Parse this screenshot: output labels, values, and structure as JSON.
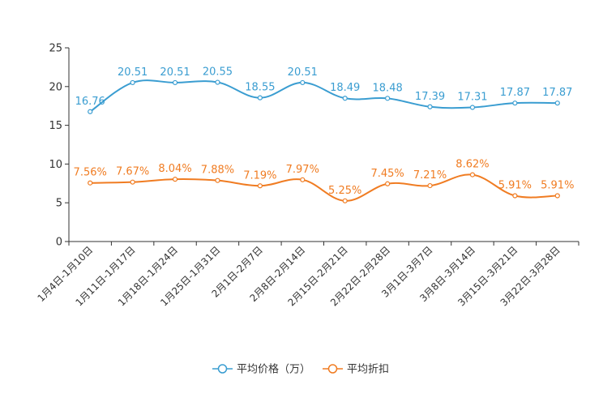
{
  "chart_data": {
    "type": "line",
    "title": "",
    "xlabel": "",
    "ylabel": "",
    "ylim": [
      0,
      25
    ],
    "yticks": [
      0,
      5,
      10,
      15,
      20,
      25
    ],
    "categories": [
      "1月4日-1月10日",
      "1月11日-1月17日",
      "1月18日-1月24日",
      "1月25日-1月31日",
      "2月1日-2月7日",
      "2月8日-2月14日",
      "2月15日-2月21日",
      "2月22日-2月28日",
      "3月1日-3月7日",
      "3月8日-3月14日",
      "3月15日-3月21日",
      "3月22日-3月28日"
    ],
    "series": [
      {
        "name": "平均价格（万）",
        "color": "#3a9dd1",
        "values": [
          16.76,
          20.51,
          20.51,
          20.55,
          18.55,
          20.51,
          18.49,
          18.48,
          17.39,
          17.31,
          17.87,
          17.87
        ],
        "labels": [
          "16.76",
          "20.51",
          "20.51",
          "20.55",
          "18.55",
          "20.51",
          "18.49",
          "18.48",
          "17.39",
          "17.31",
          "17.87",
          "17.87"
        ]
      },
      {
        "name": "平均折扣",
        "color": "#f07c22",
        "values": [
          7.56,
          7.67,
          8.04,
          7.88,
          7.19,
          7.97,
          5.25,
          7.45,
          7.21,
          8.62,
          5.91,
          5.91
        ],
        "labels": [
          "7.56%",
          "7.67%",
          "8.04%",
          "7.88%",
          "7.19%",
          "7.97%",
          "5.25%",
          "7.45%",
          "7.21%",
          "8.62%",
          "5.91%",
          "5.91%"
        ]
      }
    ],
    "legend": "bottom-center",
    "grid": false
  }
}
